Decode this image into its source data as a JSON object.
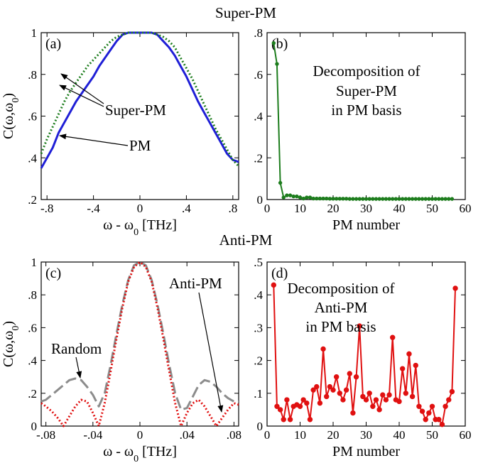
{
  "figure_titles": {
    "top": "Super-PM",
    "bottom": "Anti-PM"
  },
  "chart_data": [
    {
      "panel": "a",
      "panel_label": "(a)",
      "type": "line",
      "xlabel": "ω - ω",
      "xlabel_sub": "0",
      "xlabel_unit": " [THz]",
      "ylabel": "C(ω,ω",
      "ylabel_sub": "0",
      "ylabel_end": ")",
      "xlim": [
        -0.85,
        0.85
      ],
      "ylim": [
        0.2,
        1.0
      ],
      "xticks": [
        -0.8,
        -0.4,
        0,
        0.4,
        0.8
      ],
      "xtick_labels": [
        "-.8",
        "-.4",
        "0",
        ".4",
        ".8"
      ],
      "yticks": [
        0.2,
        0.4,
        0.6,
        0.8,
        1.0
      ],
      "ytick_labels": [
        ".2",
        ".4",
        ".6",
        ".8",
        "1"
      ],
      "annotations": [
        "Super-PM",
        "PM"
      ],
      "series": [
        {
          "name": "PM",
          "color": "#1f1fd6",
          "style": "solid",
          "x": [
            -0.85,
            -0.8,
            -0.75,
            -0.7,
            -0.65,
            -0.6,
            -0.55,
            -0.5,
            -0.45,
            -0.4,
            -0.35,
            -0.3,
            -0.25,
            -0.2,
            -0.15,
            -0.1,
            -0.05,
            0,
            0.05,
            0.1,
            0.15,
            0.2,
            0.25,
            0.3,
            0.35,
            0.4,
            0.45,
            0.5,
            0.55,
            0.6,
            0.65,
            0.7,
            0.75,
            0.8,
            0.85
          ],
          "y": [
            0.35,
            0.4,
            0.45,
            0.52,
            0.57,
            0.62,
            0.67,
            0.71,
            0.75,
            0.79,
            0.84,
            0.88,
            0.92,
            0.96,
            0.99,
            1.0,
            1.0,
            1.0,
            1.0,
            1.0,
            0.99,
            0.96,
            0.93,
            0.89,
            0.84,
            0.79,
            0.73,
            0.67,
            0.62,
            0.57,
            0.52,
            0.47,
            0.42,
            0.39,
            0.38
          ]
        },
        {
          "name": "Super-PM",
          "color": "#1d7d1d",
          "style": "dotted",
          "x": [
            -0.85,
            -0.8,
            -0.75,
            -0.7,
            -0.65,
            -0.6,
            -0.55,
            -0.5,
            -0.45,
            -0.4,
            -0.35,
            -0.3,
            -0.25,
            -0.2,
            -0.15,
            -0.1,
            -0.05,
            0,
            0.05,
            0.1,
            0.15,
            0.2,
            0.25,
            0.3,
            0.35,
            0.4,
            0.45,
            0.5,
            0.55,
            0.6,
            0.65,
            0.7,
            0.75,
            0.8,
            0.85
          ],
          "y": [
            0.42,
            0.49,
            0.55,
            0.61,
            0.67,
            0.72,
            0.76,
            0.8,
            0.84,
            0.87,
            0.9,
            0.93,
            0.96,
            0.98,
            0.99,
            1.0,
            1.0,
            1.0,
            1.0,
            1.0,
            0.99,
            0.98,
            0.96,
            0.93,
            0.88,
            0.83,
            0.78,
            0.72,
            0.66,
            0.6,
            0.54,
            0.49,
            0.44,
            0.39,
            0.36
          ]
        }
      ]
    },
    {
      "panel": "b",
      "panel_label": "(b)",
      "type": "line",
      "xlabel": "PM number",
      "xlim": [
        0,
        60
      ],
      "ylim": [
        0,
        0.8
      ],
      "xticks": [
        0,
        10,
        20,
        30,
        40,
        50,
        60
      ],
      "xtick_labels": [
        "0",
        "10",
        "20",
        "30",
        "40",
        "50",
        "60"
      ],
      "yticks": [
        0,
        0.2,
        0.4,
        0.6,
        0.8
      ],
      "ytick_labels": [
        "0",
        ".2",
        ".4",
        ".6",
        ".8"
      ],
      "annotations": [
        "Decomposition of",
        "Super-PM",
        "in PM basis"
      ],
      "series": [
        {
          "color": "#1d7d1d",
          "marker": "circle",
          "x": [
            2,
            3,
            4,
            5,
            6,
            7,
            8,
            9,
            10,
            11,
            12,
            13,
            14,
            15,
            16,
            17,
            18,
            19,
            20,
            21,
            22,
            23,
            24,
            25,
            26,
            27,
            28,
            29,
            30,
            31,
            32,
            33,
            34,
            35,
            36,
            37,
            38,
            39,
            40,
            41,
            42,
            43,
            44,
            45,
            46,
            47,
            48,
            49,
            50,
            51,
            52,
            53,
            54,
            55,
            56
          ],
          "y": [
            0.75,
            0.65,
            0.08,
            0.01,
            0.02,
            0.02,
            0.015,
            0.015,
            0.01,
            0.005,
            0.01,
            0.01,
            0.005,
            0.005,
            0.005,
            0.005,
            0.005,
            0.004,
            0.004,
            0.004,
            0.004,
            0.004,
            0.004,
            0.003,
            0.003,
            0.003,
            0.003,
            0.003,
            0.003,
            0.003,
            0.003,
            0.003,
            0.003,
            0.003,
            0.003,
            0.003,
            0.003,
            0.003,
            0.003,
            0.003,
            0.003,
            0.003,
            0.003,
            0.003,
            0.003,
            0.003,
            0.003,
            0.003,
            0.003,
            0.003,
            0.003,
            0.003,
            0.003,
            0.003,
            0.003
          ]
        }
      ]
    },
    {
      "panel": "c",
      "panel_label": "(c)",
      "type": "line",
      "xlabel": "ω - ω",
      "xlabel_sub": "0",
      "xlabel_unit": " [THz]",
      "ylabel": "C(ω,ω",
      "ylabel_sub": "0",
      "ylabel_end": ")",
      "xlim": [
        -0.084,
        0.084
      ],
      "ylim": [
        0,
        1.0
      ],
      "xticks": [
        -0.08,
        -0.04,
        0,
        0.04,
        0.08
      ],
      "xtick_labels": [
        "-.08",
        "-.04",
        "0",
        ".04",
        ".08"
      ],
      "yticks": [
        0,
        0.2,
        0.4,
        0.6,
        0.8,
        1.0
      ],
      "ytick_labels": [
        "0",
        ".2",
        ".4",
        ".6",
        ".8",
        "1"
      ],
      "annotations": [
        "Random",
        "Anti-PM"
      ],
      "series": [
        {
          "name": "Random",
          "color": "#8c8c8c",
          "style": "dashed",
          "x": [
            -0.084,
            -0.08,
            -0.075,
            -0.07,
            -0.065,
            -0.06,
            -0.055,
            -0.05,
            -0.045,
            -0.04,
            -0.035,
            -0.03,
            -0.025,
            -0.02,
            -0.015,
            -0.01,
            -0.005,
            0,
            0.005,
            0.01,
            0.015,
            0.02,
            0.025,
            0.03,
            0.035,
            0.04,
            0.045,
            0.05,
            0.055,
            0.06,
            0.065,
            0.07,
            0.075,
            0.08,
            0.084
          ],
          "y": [
            0.15,
            0.16,
            0.19,
            0.22,
            0.25,
            0.28,
            0.29,
            0.28,
            0.24,
            0.19,
            0.12,
            0.2,
            0.37,
            0.56,
            0.74,
            0.89,
            0.98,
            1.0,
            0.98,
            0.89,
            0.74,
            0.56,
            0.37,
            0.2,
            0.1,
            0.11,
            0.18,
            0.25,
            0.28,
            0.27,
            0.24,
            0.2,
            0.17,
            0.15,
            0.15
          ]
        },
        {
          "name": "Anti-PM",
          "color": "#e01010",
          "style": "dotted",
          "x": [
            -0.084,
            -0.08,
            -0.075,
            -0.07,
            -0.065,
            -0.06,
            -0.055,
            -0.05,
            -0.045,
            -0.04,
            -0.035,
            -0.03,
            -0.025,
            -0.02,
            -0.015,
            -0.01,
            -0.005,
            0,
            0.005,
            0.01,
            0.015,
            0.02,
            0.025,
            0.03,
            0.035,
            0.04,
            0.045,
            0.05,
            0.055,
            0.06,
            0.065,
            0.07,
            0.075,
            0.08,
            0.084
          ],
          "y": [
            0.14,
            0.12,
            0.09,
            0.05,
            0.0,
            0.06,
            0.12,
            0.16,
            0.15,
            0.08,
            0.0,
            0.14,
            0.33,
            0.53,
            0.72,
            0.88,
            0.97,
            1.0,
            0.97,
            0.88,
            0.72,
            0.53,
            0.33,
            0.14,
            0.0,
            0.08,
            0.14,
            0.16,
            0.12,
            0.06,
            0.0,
            0.05,
            0.1,
            0.14,
            0.13
          ]
        }
      ]
    },
    {
      "panel": "d",
      "panel_label": "(d)",
      "type": "line",
      "xlabel": "PM number",
      "xlim": [
        0,
        60
      ],
      "ylim": [
        0,
        0.5
      ],
      "xticks": [
        0,
        10,
        20,
        30,
        40,
        50,
        60
      ],
      "xtick_labels": [
        "0",
        "10",
        "20",
        "30",
        "40",
        "50",
        "60"
      ],
      "yticks": [
        0,
        0.1,
        0.2,
        0.3,
        0.4,
        0.5
      ],
      "ytick_labels": [
        "0",
        ".1",
        ".2",
        ".3",
        ".4",
        ".5"
      ],
      "annotations": [
        "Decomposition of",
        "Anti-PM",
        "in PM basis"
      ],
      "series": [
        {
          "color": "#e01010",
          "marker": "circle",
          "x": [
            2,
            3,
            4,
            5,
            6,
            7,
            8,
            9,
            10,
            11,
            12,
            13,
            14,
            15,
            16,
            17,
            18,
            19,
            20,
            21,
            22,
            23,
            24,
            25,
            26,
            27,
            28,
            29,
            30,
            31,
            32,
            33,
            34,
            35,
            36,
            37,
            38,
            39,
            40,
            41,
            42,
            43,
            44,
            45,
            46,
            47,
            48,
            49,
            50,
            51,
            52,
            53,
            54,
            55,
            56,
            57
          ],
          "y": [
            0.43,
            0.06,
            0.05,
            0.02,
            0.08,
            0.02,
            0.06,
            0.065,
            0.06,
            0.08,
            0.07,
            0.02,
            0.11,
            0.12,
            0.07,
            0.235,
            0.09,
            0.12,
            0.11,
            0.15,
            0.1,
            0.08,
            0.11,
            0.16,
            0.04,
            0.15,
            0.305,
            0.09,
            0.08,
            0.1,
            0.06,
            0.08,
            0.05,
            0.095,
            0.08,
            0.095,
            0.27,
            0.08,
            0.075,
            0.175,
            0.1,
            0.22,
            0.09,
            0.185,
            0.06,
            0.045,
            0.02,
            0.04,
            0.06,
            0.02,
            0.02,
            0.005,
            0.06,
            0.08,
            0.105,
            0.42
          ]
        }
      ]
    }
  ]
}
